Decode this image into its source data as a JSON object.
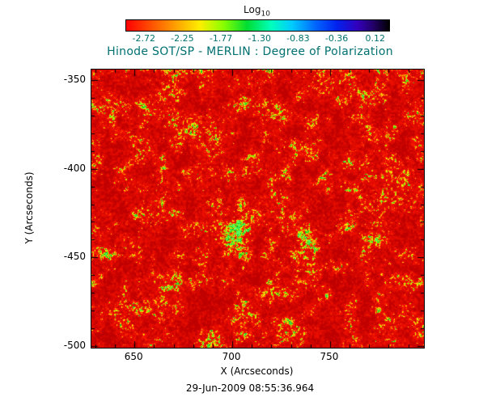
{
  "figure": {
    "timestamp": "29-Jun-2009 08:55:36.964"
  },
  "chart_data": {
    "type": "heatmap",
    "title": "Hinode SOT/SP - MERLIN : Degree of Polarization",
    "xlabel": "X (Arcseconds)",
    "ylabel": "Y (Arcseconds)",
    "xlim": [
      628,
      798
    ],
    "ylim": [
      -501,
      -344
    ],
    "xticks": [
      650,
      700,
      750
    ],
    "xtick_labels": [
      "650",
      "700",
      "750"
    ],
    "yticks": [
      -350,
      -400,
      -450,
      -500
    ],
    "ytick_labels": [
      "-350",
      "-400",
      "-450",
      "-500"
    ],
    "minor_tick_step": 10,
    "grid": false,
    "title_color": "#007070",
    "colorbar": {
      "label": "Log",
      "label_sub": "10",
      "range": [
        -2.72,
        0.12
      ],
      "tick_labels": [
        "-2.72",
        "-2.25",
        "-1.77",
        "-1.30",
        "-0.83",
        "-0.36",
        "0.12"
      ],
      "gradient": [
        [
          "#ff0000",
          0
        ],
        [
          "#ff4400",
          8
        ],
        [
          "#ff9900",
          18
        ],
        [
          "#ffee00",
          28
        ],
        [
          "#88ff00",
          37
        ],
        [
          "#00dd33",
          46
        ],
        [
          "#00ffbb",
          55
        ],
        [
          "#00ccff",
          63
        ],
        [
          "#0066ff",
          72
        ],
        [
          "#0022ee",
          80
        ],
        [
          "#3300bb",
          88
        ],
        [
          "#220066",
          94
        ],
        [
          "#000000",
          100
        ]
      ]
    },
    "image": {
      "summary": "Predominantly red field (log10 polarization near -2.7 to -2.3) with fine dark-red mottling and scattered green/yellow patches of higher polarization; largest green clusters near (690,-432) and (730,-445) arcsec",
      "seed": 77,
      "fine_scale": 0.45,
      "coarse_scale": 0.06,
      "levels": [
        0.615,
        0.648,
        0.678,
        0.715
      ],
      "palette": {
        "red_lo": [
          190,
          0,
          0
        ],
        "red_hi": [
          255,
          20,
          0
        ],
        "orange": [
          255,
          70,
          0
        ],
        "yellow": [
          255,
          225,
          0
        ],
        "yellow_green": [
          160,
          235,
          0
        ],
        "green_lo": [
          0,
          190,
          30
        ],
        "green_hi": [
          90,
          255,
          100
        ]
      },
      "blobs": [
        [
          0.43,
          0.6,
          12,
          0.22
        ],
        [
          0.46,
          0.54,
          8,
          0.14
        ],
        [
          0.4,
          0.66,
          6,
          0.12
        ],
        [
          0.63,
          0.6,
          9,
          0.16
        ],
        [
          0.66,
          0.66,
          7,
          0.13
        ],
        [
          0.61,
          0.67,
          6,
          0.12
        ],
        [
          0.84,
          0.61,
          6,
          0.13
        ],
        [
          0.3,
          0.22,
          5,
          0.1
        ],
        [
          0.46,
          0.1,
          4,
          0.09
        ],
        [
          0.77,
          0.33,
          4,
          0.09
        ],
        [
          0.6,
          0.9,
          5,
          0.11
        ],
        [
          0.17,
          0.75,
          4,
          0.09
        ]
      ]
    }
  }
}
